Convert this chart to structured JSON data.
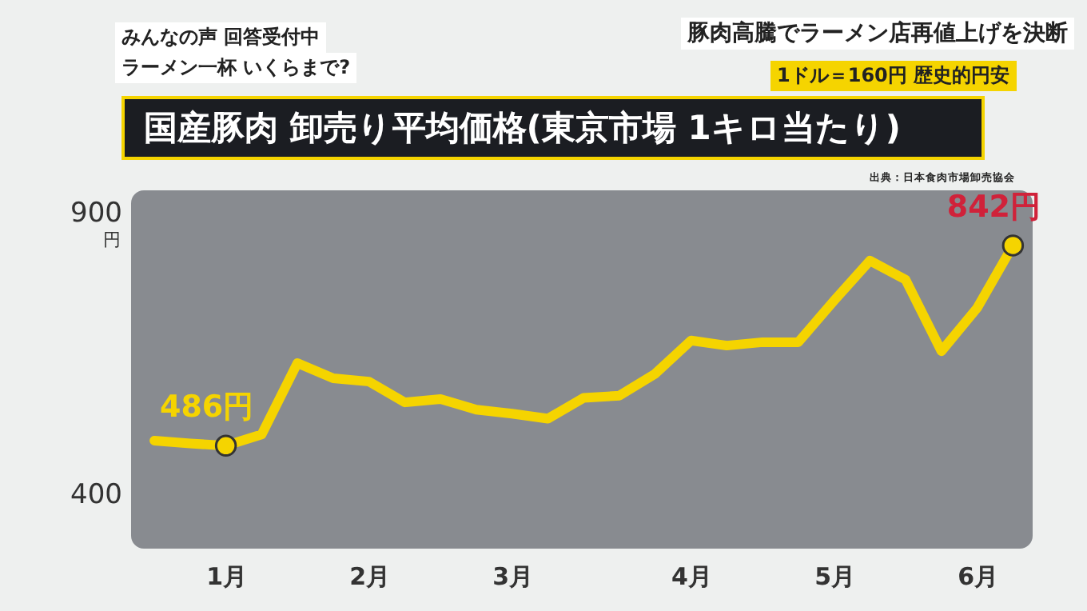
{
  "chart_data": {
    "type": "line",
    "title": "国産豚肉 卸売り平均価格(東京市場 1キロ当たり)",
    "annotations": [
      "みんなの声 回答受付中",
      "ラーメン一杯 いくらまで?",
      "豚肉高騰でラーメン店再値上げを決断",
      "1ドル＝160円 歴史的円安",
      "出典：日本食肉市場卸売協会",
      {
        "text": "486円",
        "x": "1月",
        "y": 486
      },
      "842円"
    ],
    "categories": [
      null,
      null,
      "1月",
      null,
      null,
      null,
      "2月",
      null,
      null,
      null,
      "3月",
      null,
      null,
      null,
      null,
      "4月",
      null,
      null,
      null,
      "5月",
      null,
      null,
      null,
      "6月",
      null
    ],
    "series": [
      {
        "color": "#f5d400",
        "values": [
          495,
          490,
          486,
          506,
          633,
          606,
          600,
          563,
          569,
          550,
          543,
          534,
          571,
          575,
          614,
          673,
          664,
          670,
          670,
          744,
          815,
          781,
          654,
          731,
          842
        ]
      }
    ],
    "ylim": [
      303,
      940
    ],
    "ylabel": "円",
    "yticks": [
      400,
      900
    ]
  }
}
